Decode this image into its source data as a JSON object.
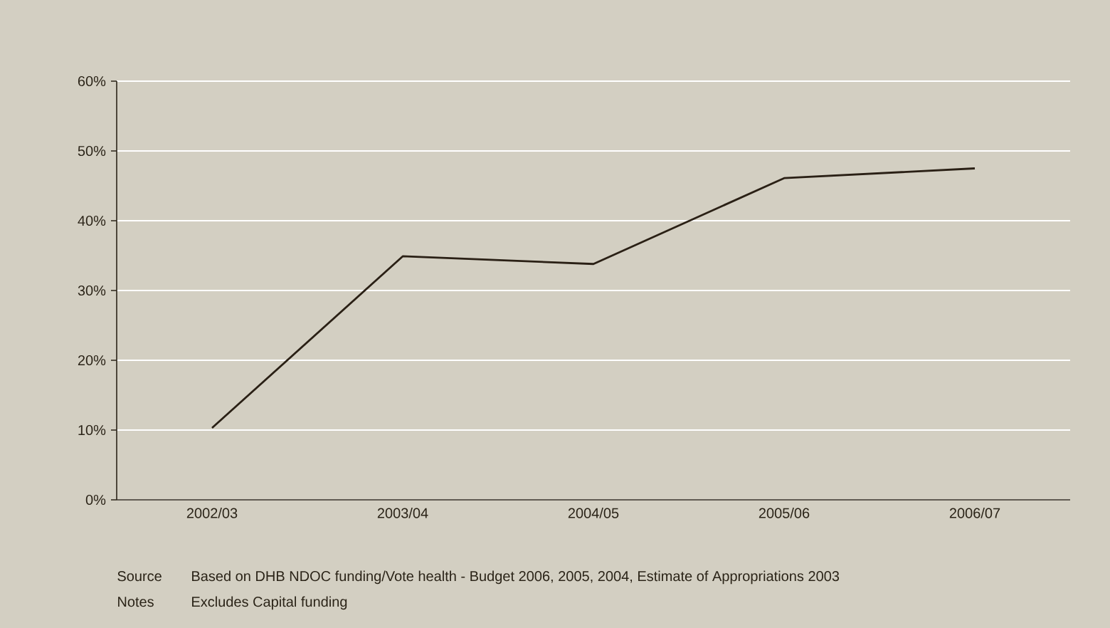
{
  "chart_data": {
    "type": "line",
    "categories": [
      "2002/03",
      "2003/04",
      "2004/05",
      "2005/06",
      "2006/07"
    ],
    "values": [
      10.3,
      34.9,
      33.8,
      46.1,
      47.5
    ],
    "color": "#2a2015",
    "ylim": [
      0,
      60
    ],
    "yticks": [
      {
        "value": 0,
        "label": "0%"
      },
      {
        "value": 10,
        "label": "10%"
      },
      {
        "value": 20,
        "label": "20%"
      },
      {
        "value": 30,
        "label": "30%"
      },
      {
        "value": 40,
        "label": "40%"
      },
      {
        "value": 50,
        "label": "50%"
      },
      {
        "value": 60,
        "label": "60%"
      }
    ],
    "grid": "y",
    "marker": "none",
    "line_style": "solid",
    "annotations": [
      "Source",
      "Based on DHB NDOC funding/Vote health - Budget 2006, 2005, 2004, Estimate of Appropriations 2003",
      "Notes",
      "Excludes Capital funding"
    ]
  }
}
